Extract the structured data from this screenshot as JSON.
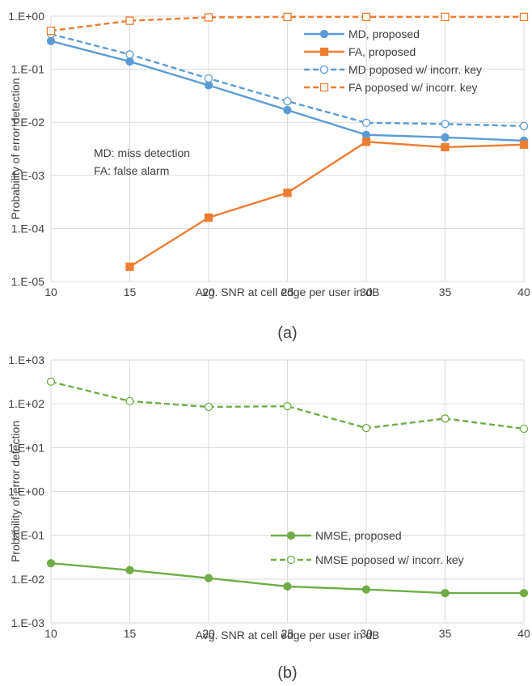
{
  "chart_data": [
    {
      "type": "line",
      "caption": "(a)",
      "xlabel": "Avg. SNR at cell edge per user in dB",
      "ylabel": "Probability of error detection",
      "yscale": "log",
      "ylim": [
        1e-05,
        1
      ],
      "xlim": [
        10,
        40
      ],
      "x": [
        10,
        15,
        20,
        25,
        30,
        35,
        40
      ],
      "x_tick_labels": [
        "10",
        "15",
        "20",
        "25",
        "30",
        "35",
        "40"
      ],
      "y_tick_labels": [
        "1.E+00",
        "1.E-01",
        "1.E-02",
        "1.E-03",
        "1.E-04",
        "1.E-05"
      ],
      "grid": true,
      "legend_position": "top-right",
      "annotations": [
        "MD: miss detection",
        "FA: false alarm"
      ],
      "series": [
        {
          "name": "MD, proposed",
          "color": "#5b9bd5",
          "dash": "solid",
          "marker": "filled-circle",
          "values": [
            0.34,
            0.14,
            0.05,
            0.017,
            0.0058,
            0.0052,
            0.0045
          ]
        },
        {
          "name": "FA, proposed",
          "color": "#ed7d31",
          "dash": "solid",
          "marker": "filled-square",
          "values": [
            null,
            1.9e-05,
            0.00016,
            0.00047,
            0.0043,
            0.0034,
            0.0038
          ]
        },
        {
          "name": "MD poposed w/ incorr. key",
          "color": "#5b9bd5",
          "dash": "dashed",
          "marker": "open-circle",
          "values": [
            0.46,
            0.19,
            0.067,
            0.025,
            0.0098,
            0.0093,
            0.0085
          ]
        },
        {
          "name": "FA poposed w/ incorr. key",
          "color": "#ed7d31",
          "dash": "dashed",
          "marker": "open-square",
          "values": [
            0.53,
            0.82,
            0.95,
            0.97,
            0.97,
            0.97,
            0.97
          ]
        }
      ]
    },
    {
      "type": "line",
      "caption": "(b)",
      "xlabel": "Avg. SNR at cell edge per user in dB",
      "ylabel": "Probability of error detection",
      "yscale": "log",
      "ylim": [
        0.001,
        1000
      ],
      "xlim": [
        10,
        40
      ],
      "x": [
        10,
        15,
        20,
        25,
        30,
        35,
        40
      ],
      "x_tick_labels": [
        "10",
        "15",
        "20",
        "25",
        "30",
        "35",
        "40"
      ],
      "y_tick_labels": [
        "1.E+03",
        "1.E+02",
        "1.E+01",
        "1.E+00",
        "1.E-01",
        "1.E-02",
        "1.E-03"
      ],
      "grid": true,
      "legend_position": "center-right",
      "annotations": [],
      "series": [
        {
          "name": "NMSE, proposed",
          "color": "#70ad47",
          "dash": "solid",
          "marker": "filled-circle",
          "values": [
            0.023,
            0.016,
            0.0105,
            0.0068,
            0.0058,
            0.0048,
            0.0048
          ]
        },
        {
          "name": "NMSE poposed w/ incorr. key",
          "color": "#70ad47",
          "dash": "dashed",
          "marker": "open-circle",
          "values": [
            320,
            115,
            85,
            88,
            28,
            46,
            27
          ]
        }
      ]
    }
  ]
}
